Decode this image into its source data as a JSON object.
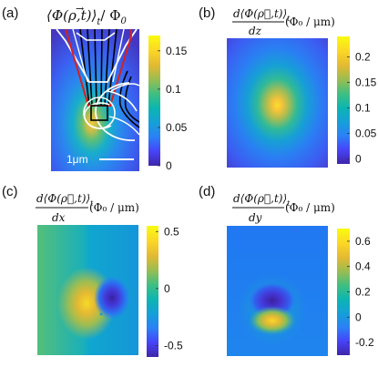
{
  "panels": [
    {
      "id": "a",
      "letter": "(a)",
      "title": "⟨Φ(ρ⃗,t)⟩ / Φ₀",
      "title_parts": {
        "lbr": "⟨",
        "phi": "Φ(",
        "rho": "ρ",
        "rest": ",t)",
        "rbr": "⟩",
        "sub": "t",
        "div": "/ Φ",
        "div_sub": "0"
      },
      "colorbar_ticks": [
        {
          "value": 0.15,
          "label": "0.15"
        },
        {
          "value": 0.1,
          "label": "0.1"
        },
        {
          "value": 0.05,
          "label": "0.05"
        },
        {
          "value": 0,
          "label": "0"
        }
      ],
      "colorbar_range": [
        0,
        0.17
      ],
      "scale_bar_label": "1μm"
    },
    {
      "id": "b",
      "letter": "(b)",
      "numerator": "d⟨Φ(ρ⃗,t)⟩",
      "numerator_sub": "t",
      "denominator": "dz",
      "unit": "(Φ₀ / μm)",
      "colorbar_ticks": [
        {
          "value": 0.2,
          "label": "0.2"
        },
        {
          "value": 0.15,
          "label": "0.15"
        },
        {
          "value": 0.1,
          "label": "0.1"
        },
        {
          "value": 0.05,
          "label": "0.05"
        },
        {
          "value": 0,
          "label": "0"
        }
      ],
      "colorbar_range": [
        -0.01,
        0.24
      ]
    },
    {
      "id": "c",
      "letter": "(c)",
      "numerator": "d⟨Φ(ρ⃗,t)⟩",
      "numerator_sub": "t",
      "denominator": "dx",
      "unit": "(Φ₀ / μm)",
      "colorbar_ticks": [
        {
          "value": 0.5,
          "label": "0.5"
        },
        {
          "value": 0,
          "label": "0"
        },
        {
          "value": -0.5,
          "label": "-0.5"
        }
      ],
      "colorbar_range": [
        -0.6,
        0.55
      ]
    },
    {
      "id": "d",
      "letter": "(d)",
      "numerator": "d⟨Φ(ρ⃗,t)⟩",
      "numerator_sub": "t",
      "denominator": "dy",
      "unit": "(Φ₀ / μm)",
      "colorbar_ticks": [
        {
          "value": 0.6,
          "label": "0.6"
        },
        {
          "value": 0.4,
          "label": "0.4"
        },
        {
          "value": 0.2,
          "label": "0.2"
        },
        {
          "value": 0,
          "label": "0"
        },
        {
          "value": -0.2,
          "label": "-0.2"
        }
      ],
      "colorbar_range": [
        -0.3,
        0.7
      ]
    }
  ],
  "colors": {
    "colormap": [
      "#3e26a8",
      "#4743f8",
      "#2b80f6",
      "#159fd8",
      "#0cb5b1",
      "#3ebf82",
      "#99bd52",
      "#e2b932",
      "#fbd527",
      "#f9fb0e"
    ],
    "sot_outline": "#ffffff",
    "lead_red": "#d91f1f",
    "lead_black": "#000000"
  }
}
